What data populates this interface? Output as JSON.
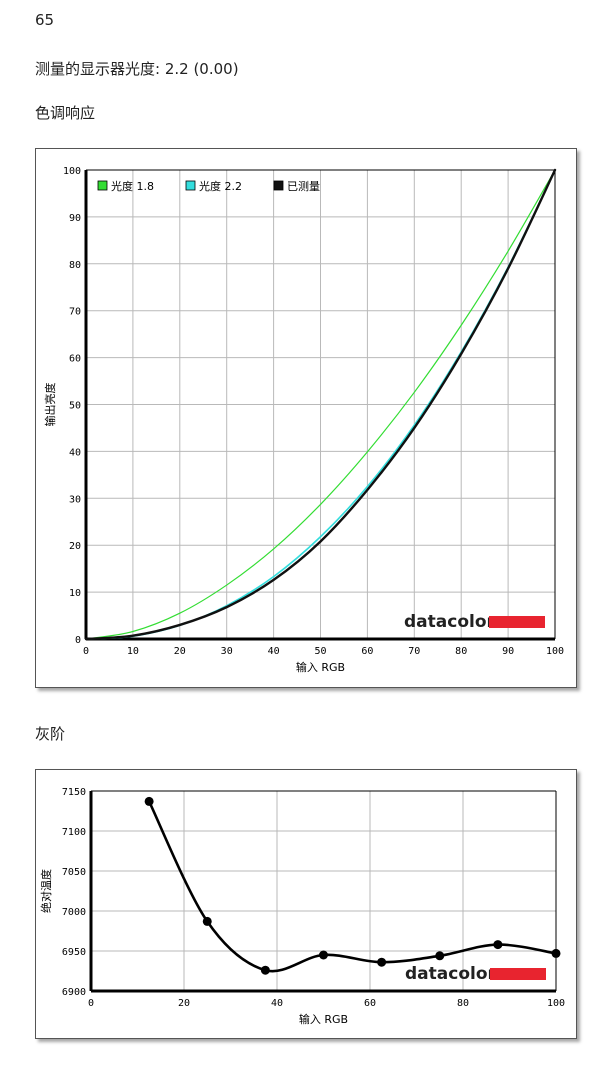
{
  "top_number": "65",
  "gamma_line": "测量的显示器光度: 2.2 (0.00)",
  "sections": {
    "tone_response": "色调响应",
    "gray_scale": "灰阶"
  },
  "logo": {
    "text": "datacolor",
    "color": "#e8242f"
  },
  "chart_data": [
    {
      "type": "line",
      "title": "色调响应",
      "xlabel": "输入 RGB",
      "ylabel": "输出亮度",
      "xlim": [
        0,
        100
      ],
      "ylim": [
        0,
        100
      ],
      "xticks": [
        0,
        10,
        20,
        30,
        40,
        50,
        60,
        70,
        80,
        90,
        100
      ],
      "yticks": [
        0,
        10,
        20,
        30,
        40,
        50,
        60,
        70,
        80,
        90,
        100
      ],
      "grid": true,
      "legend_position": "top-left",
      "series": [
        {
          "name": "光度 1.8",
          "color": "#33dd33",
          "x": [
            0,
            10,
            20,
            30,
            40,
            50,
            60,
            70,
            80,
            90,
            100
          ],
          "y": [
            0,
            1.6,
            5.5,
            11.5,
            19.2,
            28.7,
            39.9,
            52.6,
            66.9,
            82.7,
            100
          ]
        },
        {
          "name": "光度 2.2",
          "color": "#33dddd",
          "x": [
            0,
            10,
            20,
            30,
            40,
            50,
            60,
            70,
            80,
            90,
            100
          ],
          "y": [
            0,
            0.6,
            2.9,
            7.1,
            13.3,
            21.8,
            32.5,
            45.6,
            61.2,
            79.3,
            100
          ]
        },
        {
          "name": "已测量",
          "color": "#111111",
          "x": [
            0,
            10,
            20,
            30,
            40,
            50,
            60,
            70,
            80,
            90,
            100
          ],
          "y": [
            0,
            0.7,
            3.0,
            6.8,
            12.6,
            20.8,
            31.8,
            45.0,
            60.8,
            79.0,
            100
          ]
        }
      ]
    },
    {
      "type": "line",
      "title": "灰阶",
      "xlabel": "输入 RGB",
      "ylabel": "绝对温度",
      "xlim": [
        0,
        100
      ],
      "ylim": [
        6900,
        7150
      ],
      "xticks": [
        0,
        20,
        40,
        60,
        80,
        100
      ],
      "yticks": [
        6900,
        6950,
        7000,
        7050,
        7100,
        7150
      ],
      "grid": true,
      "series": [
        {
          "color": "#000000",
          "x": [
            12.5,
            25,
            37.5,
            50,
            62.5,
            75,
            87.5,
            100
          ],
          "y": [
            7137,
            6987,
            6926,
            6945,
            6936,
            6944,
            6958,
            6947
          ]
        }
      ]
    }
  ]
}
